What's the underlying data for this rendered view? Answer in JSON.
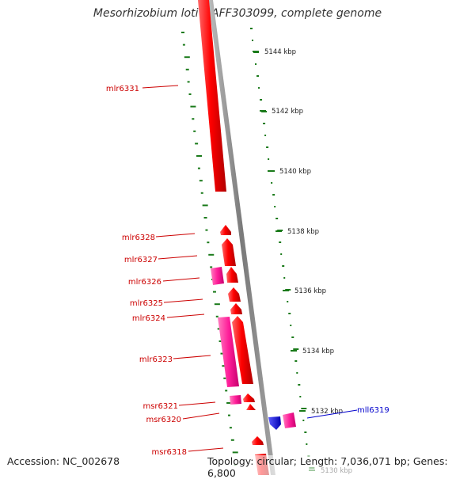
{
  "title": "Mesorhizobium loti MAFF303099, complete genome",
  "footer": {
    "accession": "Accession: NC_002678",
    "summary": "Topology: circular; Length: 7,036,071 bp; Genes: 6,800"
  },
  "ticks": [
    {
      "label": "5144 kbp"
    },
    {
      "label": "5142 kbp"
    },
    {
      "label": "5140 kbp"
    },
    {
      "label": "5138 kbp"
    },
    {
      "label": "5136 kbp"
    },
    {
      "label": "5134 kbp"
    },
    {
      "label": "5132 kbp"
    },
    {
      "label": "5130 kbp"
    }
  ],
  "genes": [
    {
      "name": "mlr6331",
      "strand": "+",
      "color": "#e8002a",
      "label_color": "#cc0000"
    },
    {
      "name": "mlr6328",
      "strand": "+",
      "color": "#e8002a",
      "label_color": "#cc0000"
    },
    {
      "name": "mlr6327",
      "strand": "+",
      "color": "#e8002a",
      "label_color": "#cc0000"
    },
    {
      "name": "mlr6326",
      "strand": "+",
      "color": "#e8002a",
      "label_color": "#cc0000"
    },
    {
      "name": "mlr6325",
      "strand": "+",
      "color": "#e8002a",
      "label_color": "#cc0000"
    },
    {
      "name": "mlr6324",
      "strand": "+",
      "color": "#e8002a",
      "label_color": "#cc0000"
    },
    {
      "name": "mlr6323",
      "strand": "+",
      "color": "#e8002a",
      "label_color": "#cc0000"
    },
    {
      "name": "msr6321",
      "strand": "+",
      "color": "#e8002a",
      "label_color": "#cc0000"
    },
    {
      "name": "msr6320",
      "strand": "+",
      "color": "#e8002a",
      "label_color": "#cc0000"
    },
    {
      "name": "msr6318",
      "strand": "+",
      "color": "#e8002a",
      "label_color": "#cc0000"
    },
    {
      "name": "mll6319",
      "strand": "-",
      "color": "#1a1aee",
      "label_color": "#0000cc"
    }
  ],
  "colors": {
    "backbone": "#8a8a8a",
    "gene_forward": "#e8002a",
    "gene_pseudo": "#ff2aa0",
    "gene_reverse": "#1a1aee",
    "gc_ticks": "#1a7a1a"
  }
}
